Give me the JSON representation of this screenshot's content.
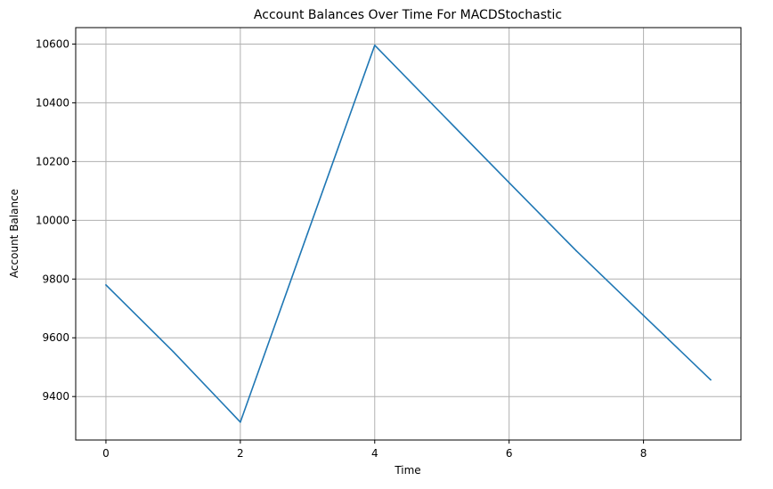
{
  "chart_data": {
    "type": "line",
    "title": "Account Balances Over Time For MACDStochastic",
    "xlabel": "Time",
    "ylabel": "Account Balance",
    "xlim": [
      -0.45,
      9.45
    ],
    "ylim": [
      9252,
      10656
    ],
    "xticks": [
      0,
      2,
      4,
      6,
      8
    ],
    "yticks": [
      9400,
      9600,
      9800,
      10000,
      10200,
      10400,
      10600
    ],
    "grid": true,
    "series": [
      {
        "x": [
          0,
          1,
          2,
          3,
          4,
          5,
          6,
          7,
          8,
          9
        ],
        "values": [
          9780,
          9553,
          9313,
          9955,
          10596,
          10362,
          10128,
          9896,
          9676,
          9457
        ],
        "color": "#1f77b4"
      }
    ]
  }
}
